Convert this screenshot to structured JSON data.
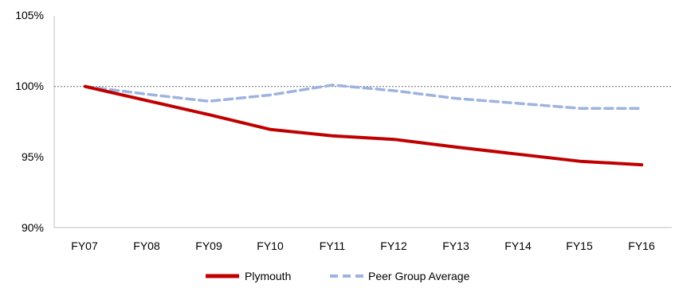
{
  "chart_data": {
    "type": "line",
    "categories": [
      "FY07",
      "FY08",
      "FY09",
      "FY10",
      "FY11",
      "FY12",
      "FY13",
      "FY14",
      "FY15",
      "FY16"
    ],
    "series": [
      {
        "name": "Plymouth",
        "values": [
          100.0,
          99.0,
          98.0,
          96.95,
          96.5,
          96.25,
          95.7,
          95.2,
          94.7,
          94.45
        ],
        "color": "#c00000",
        "style": "solid"
      },
      {
        "name": "Peer Group Average",
        "values": [
          100.0,
          99.45,
          98.95,
          99.4,
          100.1,
          99.7,
          99.15,
          98.8,
          98.45,
          98.45
        ],
        "color": "#9db3e0",
        "style": "dashed"
      }
    ],
    "yticks": [
      "90%",
      "95%",
      "100%",
      "105%"
    ],
    "ylim": [
      90,
      105
    ],
    "reference_line": 100,
    "legend_position": "bottom",
    "grid": false
  }
}
